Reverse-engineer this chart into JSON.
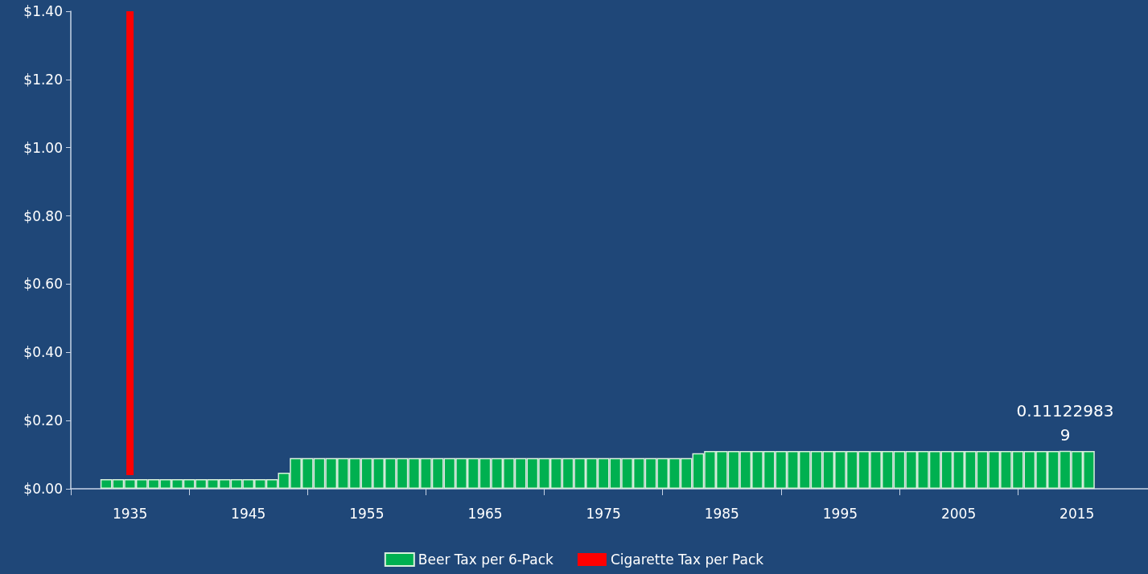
{
  "chart_data": {
    "type": "bar",
    "xlim": [
      1930,
      2021
    ],
    "xticks": [
      {
        "value": 1930,
        "label": null
      },
      {
        "value": 1935,
        "label": "1935"
      },
      {
        "value": 1940,
        "label": null
      },
      {
        "value": 1945,
        "label": "1945"
      },
      {
        "value": 1950,
        "label": null
      },
      {
        "value": 1955,
        "label": "1955"
      },
      {
        "value": 1960,
        "label": null
      },
      {
        "value": 1965,
        "label": "1965"
      },
      {
        "value": 1970,
        "label": null
      },
      {
        "value": 1975,
        "label": "1975"
      },
      {
        "value": 1980,
        "label": null
      },
      {
        "value": 1985,
        "label": "1985"
      },
      {
        "value": 1990,
        "label": null
      },
      {
        "value": 1995,
        "label": "1995"
      },
      {
        "value": 2000,
        "label": null
      },
      {
        "value": 2005,
        "label": "2005"
      },
      {
        "value": 2010,
        "label": null
      },
      {
        "value": 2015,
        "label": "2015"
      }
    ],
    "ylim": [
      0,
      1.4
    ],
    "yticks": [
      {
        "value": 0,
        "label": "$0.00"
      },
      {
        "value": 0.2,
        "label": "$0.20"
      },
      {
        "value": 0.4,
        "label": "$0.40"
      },
      {
        "value": 0.6,
        "label": "$0.60"
      },
      {
        "value": 0.8,
        "label": "$0.80"
      },
      {
        "value": 1.0,
        "label": "$1.00"
      },
      {
        "value": 1.2,
        "label": "$1.20"
      },
      {
        "value": 1.4,
        "label": "$1.40"
      }
    ],
    "legend": "bottom",
    "series": [
      {
        "name": "Beer Tax per 6-Pack",
        "color": "#00b050",
        "x": [
          1933,
          1934,
          1935,
          1936,
          1937,
          1938,
          1939,
          1940,
          1941,
          1942,
          1943,
          1944,
          1945,
          1946,
          1947,
          1948,
          1949,
          1950,
          1951,
          1952,
          1953,
          1954,
          1955,
          1956,
          1957,
          1958,
          1959,
          1960,
          1961,
          1962,
          1963,
          1964,
          1965,
          1966,
          1967,
          1968,
          1969,
          1970,
          1971,
          1972,
          1973,
          1974,
          1975,
          1976,
          1977,
          1978,
          1979,
          1980,
          1981,
          1982,
          1983,
          1984,
          1985,
          1986,
          1987,
          1988,
          1989,
          1990,
          1991,
          1992,
          1993,
          1994,
          1995,
          1996,
          1997,
          1998,
          1999,
          2000,
          2001,
          2002,
          2003,
          2004,
          2005,
          2006,
          2007,
          2008,
          2009,
          2010,
          2011,
          2012,
          2013,
          2014,
          2015,
          2016
        ],
        "values": [
          0.028,
          0.028,
          0.028,
          0.028,
          0.028,
          0.028,
          0.028,
          0.028,
          0.028,
          0.028,
          0.028,
          0.028,
          0.028,
          0.028,
          0.028,
          0.047,
          0.09,
          0.09,
          0.09,
          0.09,
          0.09,
          0.09,
          0.09,
          0.09,
          0.09,
          0.09,
          0.09,
          0.09,
          0.09,
          0.09,
          0.09,
          0.09,
          0.09,
          0.09,
          0.09,
          0.09,
          0.09,
          0.09,
          0.09,
          0.09,
          0.09,
          0.09,
          0.09,
          0.09,
          0.09,
          0.09,
          0.09,
          0.09,
          0.09,
          0.09,
          0.104,
          0.111,
          0.111,
          0.111,
          0.111,
          0.111,
          0.111,
          0.111,
          0.111,
          0.111,
          0.111,
          0.111,
          0.111,
          0.111,
          0.111,
          0.111,
          0.111,
          0.111,
          0.111,
          0.111,
          0.111,
          0.111,
          0.111,
          0.111,
          0.111,
          0.111,
          0.111,
          0.111,
          0.111,
          0.111,
          0.111,
          0.111229839,
          0.111,
          0.111
        ],
        "value_labels": [
          null,
          null,
          null,
          null,
          null,
          null,
          null,
          null,
          null,
          null,
          null,
          null,
          null,
          null,
          null,
          null,
          null,
          null,
          null,
          null,
          null,
          null,
          null,
          null,
          null,
          null,
          null,
          null,
          null,
          null,
          null,
          null,
          null,
          null,
          null,
          null,
          null,
          null,
          null,
          null,
          null,
          null,
          null,
          null,
          null,
          null,
          null,
          null,
          null,
          null,
          null,
          null,
          null,
          null,
          null,
          null,
          null,
          null,
          null,
          null,
          null,
          null,
          null,
          null,
          null,
          null,
          null,
          null,
          null,
          null,
          null,
          null,
          null,
          null,
          null,
          null,
          null,
          null,
          null,
          null,
          null,
          "0.111229839",
          null,
          null
        ]
      },
      {
        "name": "Cigarette Tax per Pack",
        "type": "line",
        "color": "#ff0000",
        "marker": "none",
        "x": [
          1935,
          1935
        ],
        "values": [
          0.04,
          1.4
        ]
      }
    ]
  }
}
